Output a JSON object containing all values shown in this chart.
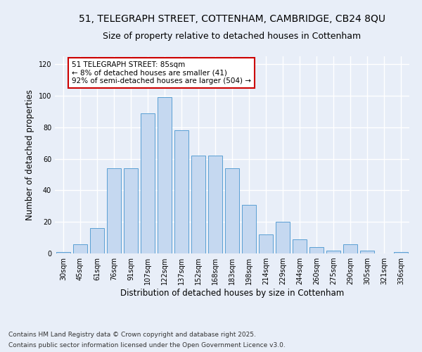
{
  "title_line1": "51, TELEGRAPH STREET, COTTENHAM, CAMBRIDGE, CB24 8QU",
  "title_line2": "Size of property relative to detached houses in Cottenham",
  "xlabel": "Distribution of detached houses by size in Cottenham",
  "ylabel": "Number of detached properties",
  "categories": [
    "30sqm",
    "45sqm",
    "61sqm",
    "76sqm",
    "91sqm",
    "107sqm",
    "122sqm",
    "137sqm",
    "152sqm",
    "168sqm",
    "183sqm",
    "198sqm",
    "214sqm",
    "229sqm",
    "244sqm",
    "260sqm",
    "275sqm",
    "290sqm",
    "305sqm",
    "321sqm",
    "336sqm"
  ],
  "values": [
    1,
    6,
    16,
    54,
    54,
    89,
    99,
    78,
    62,
    62,
    54,
    31,
    12,
    20,
    9,
    4,
    2,
    6,
    2,
    0,
    1
  ],
  "bar_color": "#c5d8f0",
  "bar_edge_color": "#5a9fd4",
  "annotation_text": "51 TELEGRAPH STREET: 85sqm\n← 8% of detached houses are smaller (41)\n92% of semi-detached houses are larger (504) →",
  "annotation_box_color": "#ffffff",
  "annotation_box_edge_color": "#cc0000",
  "ylim": [
    0,
    125
  ],
  "yticks": [
    0,
    20,
    40,
    60,
    80,
    100,
    120
  ],
  "footnote_line1": "Contains HM Land Registry data © Crown copyright and database right 2025.",
  "footnote_line2": "Contains public sector information licensed under the Open Government Licence v3.0.",
  "background_color": "#e8eef8",
  "plot_background_color": "#e8eef8",
  "grid_color": "#ffffff",
  "title_fontsize": 10,
  "subtitle_fontsize": 9,
  "axis_label_fontsize": 8.5,
  "tick_fontsize": 7,
  "annotation_fontsize": 7.5,
  "footnote_fontsize": 6.5
}
